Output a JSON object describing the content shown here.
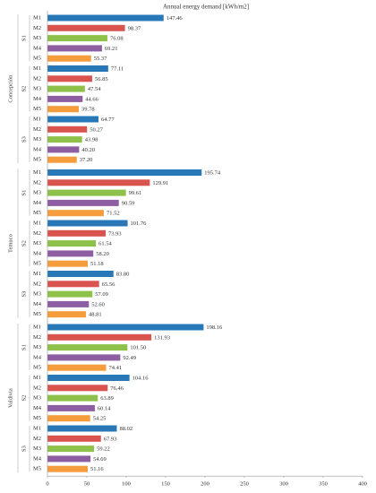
{
  "chart_data": {
    "type": "hbar-grouped",
    "title": "Annual energy demand [kWh/m2]",
    "colors": [
      "#2878b8",
      "#d9534f",
      "#8dc14a",
      "#8e5ea2",
      "#f59c3c"
    ],
    "xlim": [
      0,
      400
    ],
    "xticks": [
      0,
      50,
      100,
      150,
      200,
      250,
      300,
      350,
      400
    ],
    "groups": [
      {
        "name": "Concepción",
        "subgroups": [
          {
            "name": "S1",
            "categories": [
              "M1",
              "M2",
              "M3",
              "M4",
              "M5"
            ],
            "values": [
              147.46,
              98.37,
              76.08,
              69.21,
              55.37
            ],
            "value_labels": [
              "147.46",
              "98.37",
              "76.08",
              "69.21",
              "55.37"
            ]
          },
          {
            "name": "S2",
            "categories": [
              "M1",
              "M2",
              "M3",
              "M4",
              "M5"
            ],
            "values": [
              77.11,
              56.85,
              47.54,
              44.66,
              39.78
            ],
            "value_labels": [
              "77.11",
              "56.85",
              "47.54",
              "44.66",
              "39.78"
            ]
          },
          {
            "name": "S3",
            "categories": [
              "M1",
              "M2",
              "M3",
              "M4",
              "M5"
            ],
            "values": [
              64.77,
              50.27,
              43.98,
              40.2,
              37.2
            ],
            "value_labels": [
              "64.77",
              "50.27",
              "43.98",
              "40.20",
              "37.20"
            ]
          }
        ]
      },
      {
        "name": "Temuco",
        "subgroups": [
          {
            "name": "S1",
            "categories": [
              "M1",
              "M2",
              "M3",
              "M4",
              "M5"
            ],
            "values": [
              195.74,
              129.91,
              99.61,
              90.59,
              71.52
            ],
            "value_labels": [
              "195.74",
              "129.91",
              "99.61",
              "90.59",
              "71.52"
            ]
          },
          {
            "name": "S2",
            "categories": [
              "M1",
              "M2",
              "M3",
              "M4",
              "M5"
            ],
            "values": [
              101.76,
              73.93,
              61.54,
              58.2,
              51.18
            ],
            "value_labels": [
              "101.76",
              "73.93",
              "61.54",
              "58.20",
              "51.18"
            ]
          },
          {
            "name": "S3",
            "categories": [
              "M1",
              "M2",
              "M3",
              "M4",
              "M5"
            ],
            "values": [
              83.8,
              65.56,
              57.09,
              52.6,
              48.81
            ],
            "value_labels": [
              "83.80",
              "65.56",
              "57.09",
              "52.60",
              "48.81"
            ]
          }
        ]
      },
      {
        "name": "Valdivia",
        "subgroups": [
          {
            "name": "S1",
            "categories": [
              "M1",
              "M2",
              "M3",
              "M4",
              "M5"
            ],
            "values": [
              198.16,
              131.93,
              101.5,
              92.49,
              74.41
            ],
            "value_labels": [
              "198.16",
              "131.93",
              "101.50",
              "92.49",
              "74.41"
            ]
          },
          {
            "name": "S2",
            "categories": [
              "M1",
              "M2",
              "M3",
              "M4",
              "M5"
            ],
            "values": [
              104.16,
              76.46,
              63.89,
              60.14,
              54.25
            ],
            "value_labels": [
              "104.16",
              "76.46",
              "63.89",
              "60.14",
              "54.25"
            ]
          },
          {
            "name": "S3",
            "categories": [
              "M1",
              "M2",
              "M3",
              "M4",
              "M5"
            ],
            "values": [
              88.02,
              67.93,
              59.22,
              54.69,
              51.16
            ],
            "value_labels": [
              "88.02",
              "67.93",
              "59.22",
              "54.69",
              "51.16"
            ]
          }
        ]
      }
    ]
  }
}
